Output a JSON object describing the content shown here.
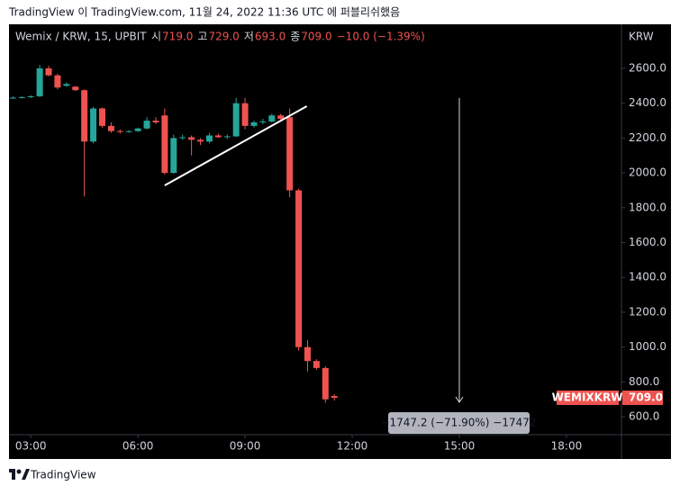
{
  "caption": "TradingView 이 TradingView.com, 11월 24, 2022 11:36 UTC 에 퍼블리쉬했음",
  "footer": "TradingView",
  "chart_data": {
    "type": "candlestick",
    "symbol": "Wemix / KRW, 15, UPBIT",
    "ohlc_legend": [
      {
        "label": "시",
        "value": "719.0"
      },
      {
        "label": "고",
        "value": "729.0"
      },
      {
        "label": "저",
        "value": "693.0"
      },
      {
        "label": "종",
        "value": "709.0"
      }
    ],
    "change": "−10.0 (−1.39%)",
    "y_axis_label": "KRW",
    "x": [
      2.5,
      2.75,
      3,
      3.25,
      3.5,
      3.75,
      4,
      4.25,
      4.5,
      4.75,
      5,
      5.25,
      5.5,
      5.75,
      6,
      6.25,
      6.5,
      6.75,
      7,
      7.25,
      7.5,
      7.75,
      8,
      8.25,
      8.5,
      8.75,
      9,
      9.25,
      9.5,
      9.75,
      10,
      10.25,
      10.5,
      10.75,
      11,
      11.25,
      11.5
    ],
    "open": [
      2430,
      2432,
      2435,
      2440,
      2600,
      2560,
      2500,
      2495,
      2475,
      2180,
      2370,
      2270,
      2240,
      2235,
      2240,
      2255,
      2300,
      2330,
      2000,
      2200,
      2205,
      2190,
      2180,
      2215,
      2205,
      2210,
      2400,
      2270,
      2290,
      2295,
      2330,
      2320,
      1900,
      1000,
      920,
      880,
      719
    ],
    "high": [
      2440,
      2440,
      2445,
      2620,
      2615,
      2570,
      2520,
      2500,
      2480,
      2380,
      2375,
      2290,
      2250,
      2245,
      2260,
      2320,
      2320,
      2370,
      2220,
      2220,
      2215,
      2200,
      2230,
      2225,
      2220,
      2430,
      2430,
      2300,
      2310,
      2340,
      2340,
      2370,
      1910,
      1040,
      930,
      890,
      729
    ],
    "low": [
      2425,
      2428,
      2430,
      2435,
      2555,
      2480,
      2495,
      2470,
      1865,
      2170,
      2260,
      2230,
      2225,
      2230,
      2235,
      2250,
      2280,
      1990,
      1995,
      2190,
      2100,
      2160,
      2170,
      2200,
      2195,
      2205,
      2250,
      2260,
      2280,
      2290,
      2300,
      1860,
      980,
      860,
      870,
      680,
      693
    ],
    "close": [
      2432,
      2435,
      2440,
      2600,
      2560,
      2490,
      2510,
      2475,
      2180,
      2370,
      2270,
      2240,
      2235,
      2240,
      2255,
      2300,
      2290,
      2000,
      2200,
      2205,
      2190,
      2180,
      2215,
      2205,
      2210,
      2400,
      2270,
      2290,
      2295,
      2330,
      2310,
      1900,
      1000,
      920,
      880,
      700,
      709
    ],
    "up_color": "#26a69a",
    "down_color": "#ef5350",
    "xlim": [
      2.39,
      19.54
    ],
    "ylim": [
      497,
      2848
    ],
    "xticks": [
      {
        "value": 3,
        "label": "03:00"
      },
      {
        "value": 6,
        "label": "06:00"
      },
      {
        "value": 9,
        "label": "09:00"
      },
      {
        "value": 12,
        "label": "12:00"
      },
      {
        "value": 15,
        "label": "15:00"
      },
      {
        "value": 18,
        "label": "18:00"
      }
    ],
    "yticks": [
      {
        "value": 600,
        "label": "600.0"
      },
      {
        "value": 800,
        "label": "800.0"
      },
      {
        "value": 1000,
        "label": "1000.0"
      },
      {
        "value": 1200,
        "label": "1200.0"
      },
      {
        "value": 1400,
        "label": "1400.0"
      },
      {
        "value": 1600,
        "label": "1600.0"
      },
      {
        "value": 1800,
        "label": "1800.0"
      },
      {
        "value": 2000,
        "label": "2000.0"
      },
      {
        "value": 2200,
        "label": "2200.0"
      },
      {
        "value": 2400,
        "label": "2400.0"
      },
      {
        "value": 2600,
        "label": "2600.0"
      }
    ],
    "trendline": {
      "x": [
        6.75,
        10.73
      ],
      "y": [
        1928,
        2383
      ]
    },
    "measure": {
      "x": [
        15,
        15
      ],
      "y": [
        2430,
        683
      ],
      "label": "−1747.2 (−71.90%) −17472"
    },
    "last_price": {
      "name": "WEMIXKRW",
      "value": 709,
      "value_label": "709.0"
    }
  }
}
